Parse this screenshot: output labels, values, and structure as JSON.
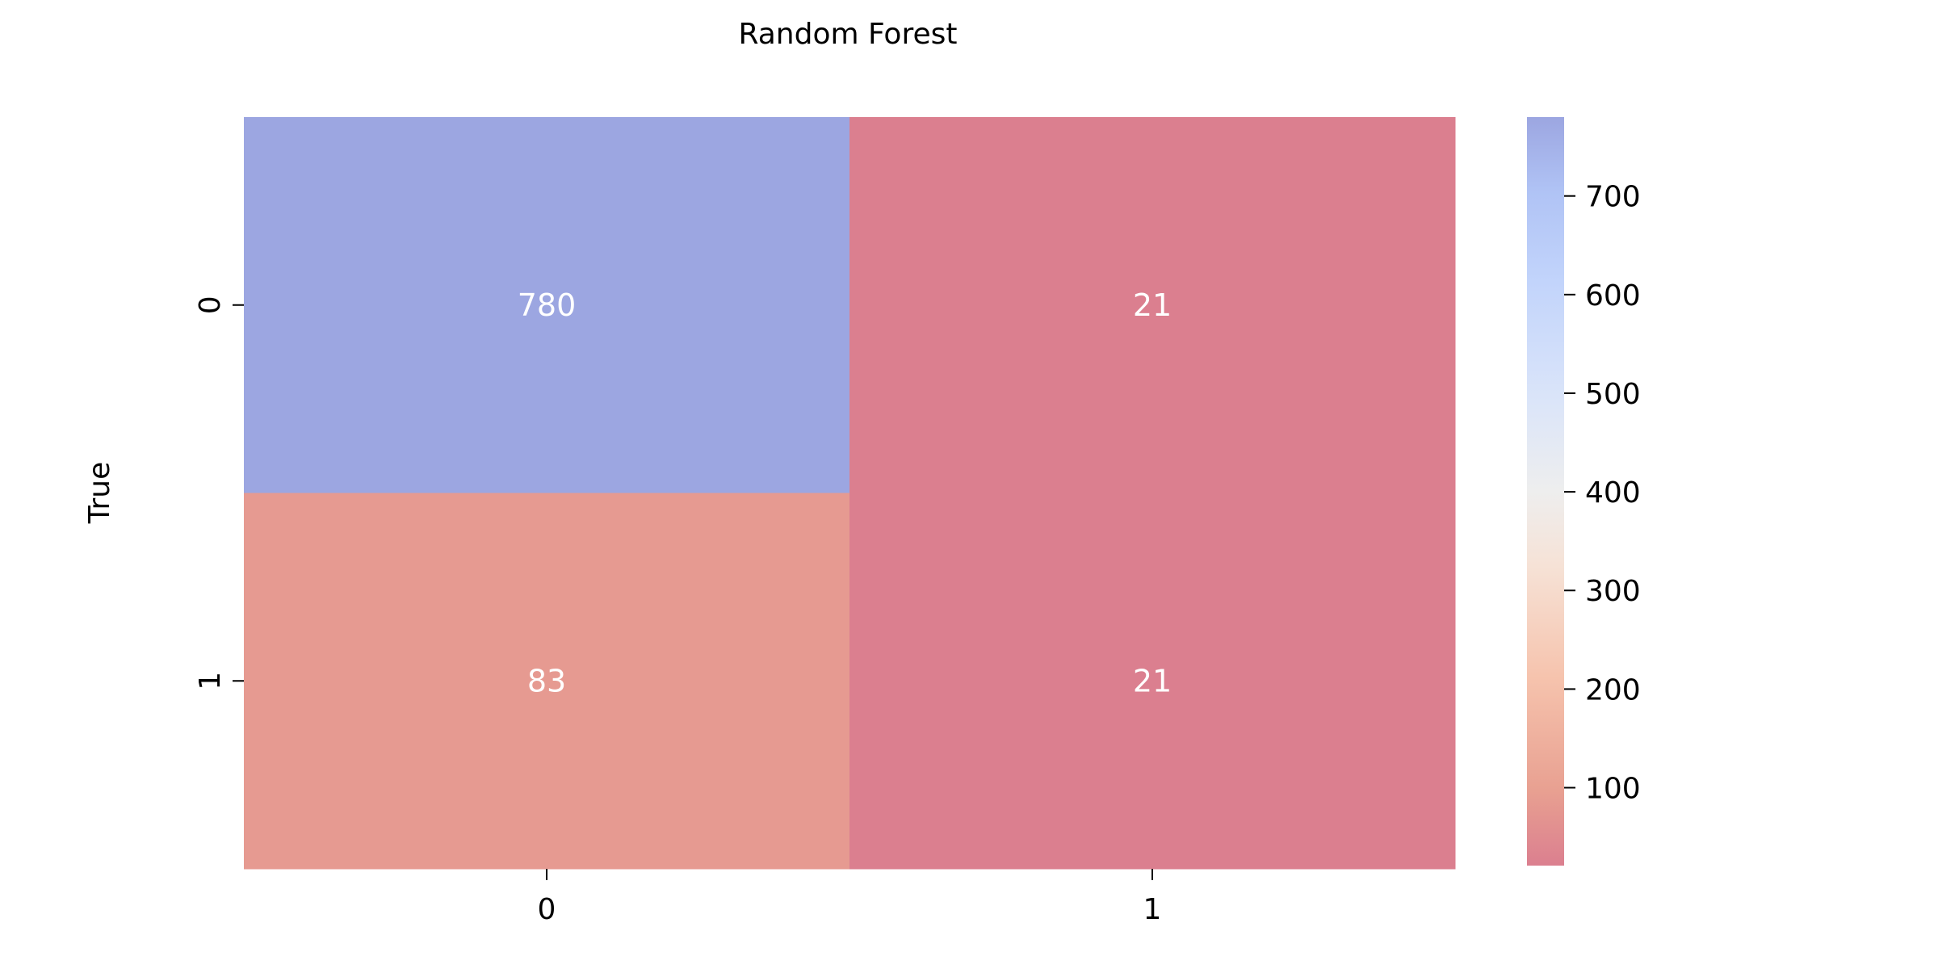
{
  "chart_data": {
    "type": "heatmap",
    "title": "Random Forest",
    "xlabel": "",
    "ylabel": "True",
    "x_categories": [
      "0",
      "1"
    ],
    "y_categories": [
      "0",
      "1"
    ],
    "values": [
      [
        780,
        21
      ],
      [
        83,
        21
      ]
    ],
    "annotations": [
      [
        "780",
        "21"
      ],
      [
        "83",
        "21"
      ]
    ],
    "colormap": "coolwarm (reversed)",
    "color_range": [
      21,
      780
    ],
    "colorbar_ticks": [
      100,
      200,
      300,
      400,
      500,
      600,
      700
    ],
    "colorbar_tick_labels": [
      "100",
      "200",
      "300",
      "400",
      "500",
      "600",
      "700"
    ],
    "annotation_color": "#ffffff",
    "cell_alpha": 0.6
  }
}
